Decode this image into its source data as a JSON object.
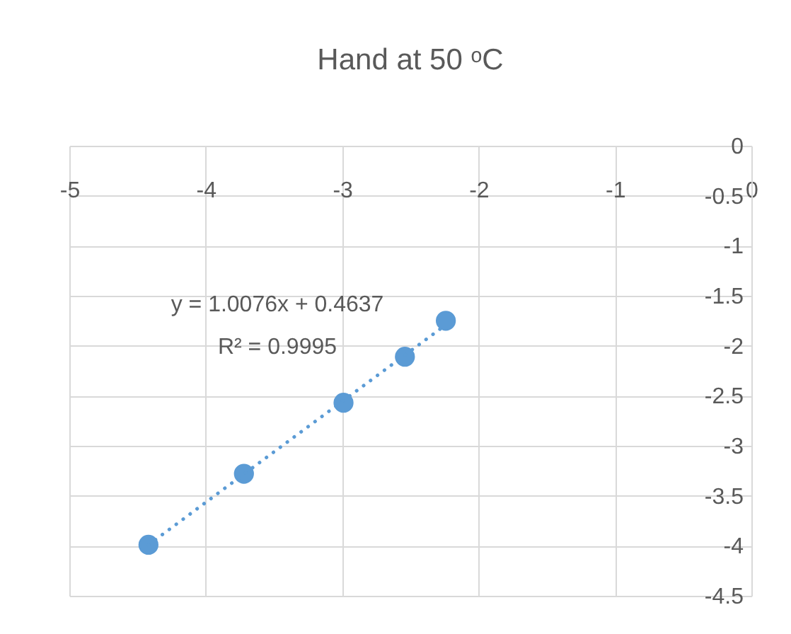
{
  "chart_data": {
    "type": "scatter",
    "title": "Hand at 50 ᵒC",
    "series": [
      {
        "type": "scatter",
        "color": "#5b9bd5",
        "marker": "circle",
        "x": [
          -4.42,
          -3.72,
          -2.99,
          -2.54,
          -2.24
        ],
        "values": [
          -3.99,
          -3.28,
          -2.57,
          -2.11,
          -1.75
        ]
      },
      {
        "type": "line",
        "color": "#5b9bd5",
        "line_style": "dotted",
        "marker": "none",
        "x": [
          -4.42,
          -2.24
        ],
        "values": [
          -3.99,
          -1.79
        ]
      }
    ],
    "annotations": [
      "y = 1.0076x + 0.4637",
      "R² = 0.9995"
    ],
    "xlim": [
      -5,
      0
    ],
    "xticks": [
      -5,
      -4,
      -3,
      -2,
      -1,
      0
    ],
    "ylim": [
      -4.5,
      0
    ],
    "yticks": [
      0,
      -0.5,
      -1,
      -1.5,
      -2,
      -2.5,
      -3,
      -3.5,
      -4,
      -4.5
    ],
    "grid": true
  }
}
